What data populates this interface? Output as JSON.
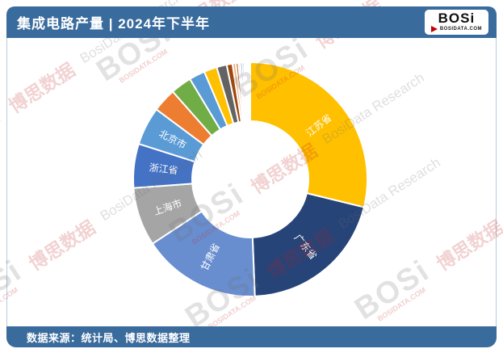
{
  "header": {
    "title": "集成电路产量 | 2024年下半年",
    "logo": {
      "text": "BOSi",
      "domain": "BOSIDATA.COM"
    }
  },
  "footer": {
    "source": "数据来源：统计局、博思数据整理"
  },
  "watermark": {
    "logo": "BOSi",
    "domain": "BOSIDATA.COM",
    "cn": "博思数据",
    "en": "BosiData Research"
  },
  "colors": {
    "bar_blue": "#3A6B9D",
    "card_border": "#B9CBDC",
    "slice_label_text": "#FFFFFF",
    "logo_accent_red": "#C00000"
  },
  "chart_data": {
    "type": "pie",
    "subtype": "donut",
    "title": "集成电路产量 | 2024年下半年",
    "legend": "none",
    "data_labels": "category names inside labeled slices, white text, radial",
    "value_basis": "percent share estimated from arc angles (chart shows no numeric labels)",
    "slices": [
      {
        "label": "江苏省",
        "pct": 28.9,
        "color": "#FFC000"
      },
      {
        "label": "广东省",
        "pct": 20.6,
        "color": "#264478"
      },
      {
        "label": "甘肃省",
        "pct": 16.4,
        "color": "#698ED0"
      },
      {
        "label": "上海市",
        "pct": 8.1,
        "color": "#A5A5A5"
      },
      {
        "label": "浙江省",
        "pct": 6.1,
        "color": "#4472C4"
      },
      {
        "label": "北京市",
        "pct": 5.3,
        "color": "#5B9BD5"
      },
      {
        "label": "",
        "pct": 3.3,
        "color": "#ED7D31"
      },
      {
        "label": "",
        "pct": 2.9,
        "color": "#70AD47"
      },
      {
        "label": "",
        "pct": 2.2,
        "color": "#5B9BD5"
      },
      {
        "label": "",
        "pct": 1.8,
        "color": "#FFC000"
      },
      {
        "label": "",
        "pct": 1.4,
        "color": "#636363"
      },
      {
        "label": "",
        "pct": 0.8,
        "color": "#9E480E"
      },
      {
        "label": "",
        "pct": 0.45,
        "color": "#F4B183"
      },
      {
        "label": "",
        "pct": 0.35,
        "color": "#C55A11"
      },
      {
        "label": "",
        "pct": 0.28,
        "color": "#D6DCE5"
      },
      {
        "label": "",
        "pct": 0.28,
        "color": "#2E75B6"
      },
      {
        "label": "",
        "pct": 0.25,
        "color": "#1F4E79"
      },
      {
        "label": "",
        "pct": 0.22,
        "color": "#7F6000"
      },
      {
        "label": "",
        "pct": 0.22,
        "color": "#548235"
      },
      {
        "label": "",
        "pct": 0.2,
        "color": "#A9D18E"
      },
      {
        "label": "",
        "pct": 0.2,
        "color": "#FFE699"
      }
    ]
  }
}
